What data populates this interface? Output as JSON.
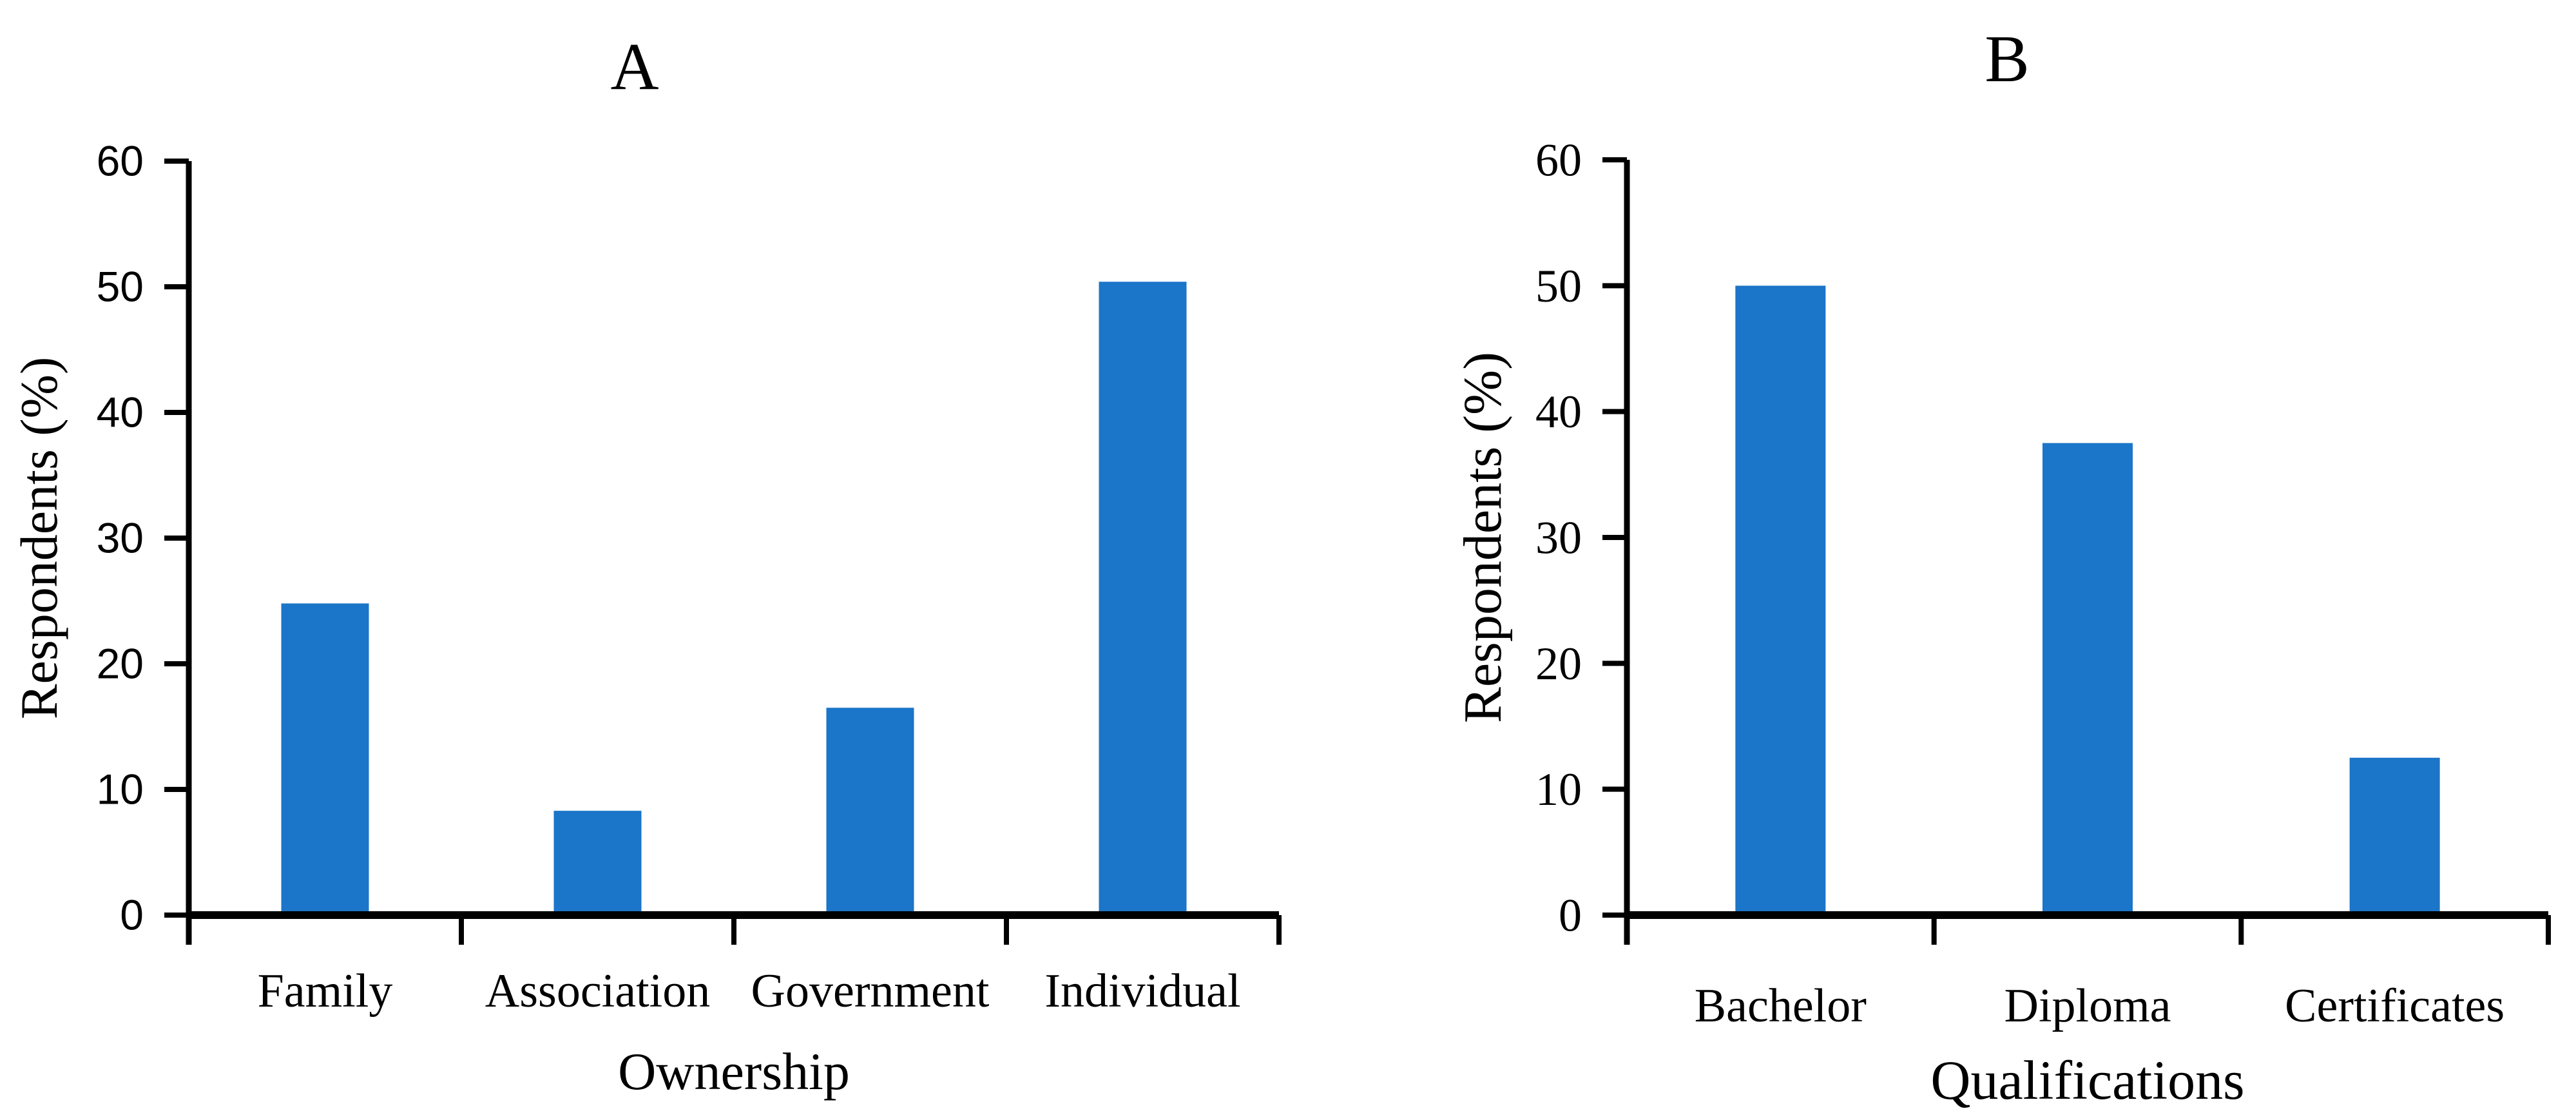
{
  "figure": {
    "background": "#ffffff",
    "text_color": "#000000",
    "bar_color": "#1B75C8"
  },
  "chart_data": [
    {
      "type": "bar",
      "panel_label": "A",
      "title": "A",
      "categories": [
        "Family",
        "Association",
        "Government",
        "Individual"
      ],
      "values": [
        24.8,
        8.3,
        16.5,
        50.4
      ],
      "xlabel": "Ownership",
      "ylabel": "Respondents (%)",
      "ylim": [
        0,
        60
      ],
      "yticks": [
        0,
        10,
        20,
        30,
        40,
        50,
        60
      ],
      "bar_color": "#1B75C8",
      "axis_color": "#000000",
      "grid": "off",
      "legend": "none"
    },
    {
      "type": "bar",
      "panel_label": "B",
      "title": "B",
      "categories": [
        "Bachelor",
        "Diploma",
        "Certificates"
      ],
      "values": [
        50.0,
        37.5,
        12.5
      ],
      "xlabel": "Qualifications",
      "ylabel": "Respondents (%)",
      "ylim": [
        0,
        60
      ],
      "yticks": [
        0,
        10,
        20,
        30,
        40,
        50,
        60
      ],
      "bar_color": "#1B75C8",
      "axis_color": "#000000",
      "grid": "off",
      "legend": "none"
    }
  ]
}
